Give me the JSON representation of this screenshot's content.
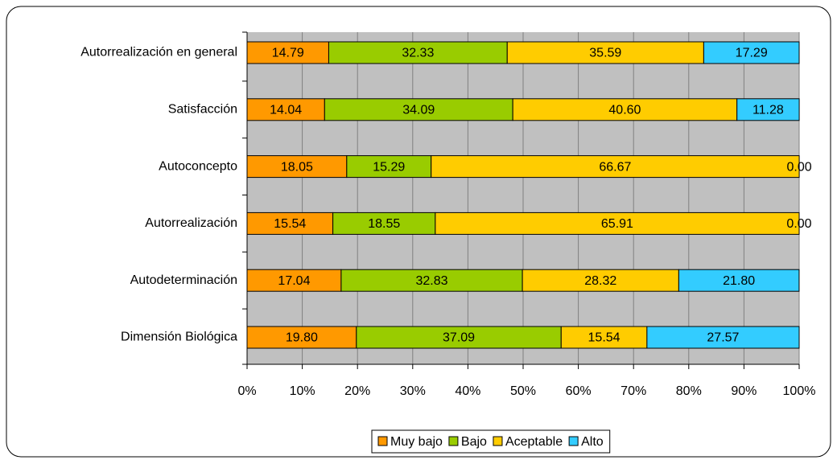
{
  "chart_data": {
    "type": "bar",
    "orientation": "horizontal",
    "stacked": true,
    "categories": [
      "Autorrealización en general",
      "Satisfacción",
      "Autoconcepto",
      "Autorrealización",
      "Autodeterminación",
      "Dimensión Biológica"
    ],
    "series": [
      {
        "name": "Muy bajo",
        "color": "#ff9900",
        "values": [
          14.79,
          14.04,
          18.05,
          15.54,
          17.04,
          19.8
        ],
        "value_labels": [
          "14.79",
          "14.04",
          "18.05",
          "15.54",
          "17.04",
          "19.80"
        ]
      },
      {
        "name": "Bajo",
        "color": "#99cc00",
        "values": [
          32.33,
          34.09,
          15.29,
          18.55,
          32.83,
          37.09
        ],
        "value_labels": [
          "32.33",
          "34.09",
          "15.29",
          "18.55",
          "32.83",
          "37.09"
        ]
      },
      {
        "name": "Aceptable",
        "color": "#ffcc00",
        "values": [
          35.59,
          40.6,
          66.67,
          65.91,
          28.32,
          15.54
        ],
        "value_labels": [
          "35.59",
          "40.60",
          "66.67",
          "65.91",
          "28.32",
          "15.54"
        ]
      },
      {
        "name": "Alto",
        "color": "#33ccff",
        "values": [
          17.29,
          11.28,
          0,
          0,
          21.8,
          27.57
        ],
        "value_labels": [
          "17.29",
          "11.28",
          "0.00",
          "0.00",
          "21.80",
          "27.57"
        ]
      }
    ],
    "xlim": [
      0,
      100
    ],
    "xticks": [
      {
        "value": 0,
        "label": "0%"
      },
      {
        "value": 10,
        "label": "10%"
      },
      {
        "value": 20,
        "label": "20%"
      },
      {
        "value": 30,
        "label": "30%"
      },
      {
        "value": 40,
        "label": "40%"
      },
      {
        "value": 50,
        "label": "50%"
      },
      {
        "value": 60,
        "label": "60%"
      },
      {
        "value": 70,
        "label": "70%"
      },
      {
        "value": 80,
        "label": "80%"
      },
      {
        "value": 90,
        "label": "90%"
      },
      {
        "value": 100,
        "label": "100%"
      }
    ],
    "grid": true,
    "legend": "bottom"
  }
}
